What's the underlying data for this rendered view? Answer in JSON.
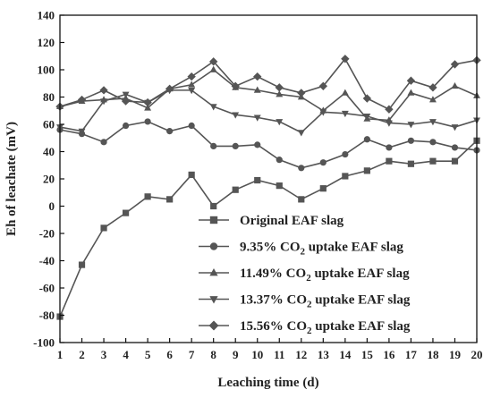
{
  "chart_data": {
    "type": "line",
    "xlabel": "Leaching time (d)",
    "ylabel": "Eh of leachate (mV)",
    "xlim": [
      1,
      20
    ],
    "ylim": [
      -100,
      140
    ],
    "x_ticks": [
      1,
      2,
      3,
      4,
      5,
      6,
      7,
      8,
      9,
      10,
      11,
      12,
      13,
      14,
      15,
      16,
      17,
      18,
      19,
      20
    ],
    "y_ticks": [
      -100,
      -80,
      -60,
      -40,
      -20,
      0,
      20,
      40,
      60,
      80,
      100,
      120,
      140
    ],
    "x": [
      1,
      2,
      3,
      4,
      5,
      6,
      7,
      8,
      9,
      10,
      11,
      12,
      13,
      14,
      15,
      16,
      17,
      18,
      19,
      20
    ],
    "legend_position": "lower-right",
    "series": [
      {
        "name": "Original EAF slag",
        "pre": "Original EAF slag",
        "sub": "",
        "post": "",
        "marker": "square",
        "values": [
          -81,
          -43,
          -16,
          -5,
          7,
          5,
          23,
          0,
          12,
          19,
          15,
          5,
          13,
          22,
          26,
          33,
          31,
          33,
          33,
          48
        ]
      },
      {
        "name": "9.35% CO2 uptake EAF slag",
        "pre": "9.35% CO",
        "sub": "2",
        "post": " uptake EAF slag",
        "marker": "circle",
        "values": [
          56,
          53,
          47,
          59,
          62,
          55,
          59,
          44,
          44,
          45,
          34,
          28,
          32,
          38,
          49,
          43,
          48,
          47,
          43,
          41
        ]
      },
      {
        "name": "11.49% CO2 uptake EAF slag",
        "pre": "11.49% CO",
        "sub": "2",
        "post": " uptake EAF slag",
        "marker": "triangle-up",
        "values": [
          73,
          77,
          78,
          79,
          72,
          86,
          89,
          100,
          87,
          85,
          82,
          80,
          70,
          83,
          64,
          63,
          83,
          78,
          88,
          81
        ]
      },
      {
        "name": "13.37% CO2 uptake EAF slag",
        "pre": "13.37% CO",
        "sub": "2",
        "post": " uptake EAF slag",
        "marker": "triangle-down",
        "values": [
          58,
          55,
          77,
          82,
          76,
          85,
          85,
          73,
          67,
          65,
          62,
          54,
          69,
          68,
          66,
          61,
          60,
          62,
          58,
          63
        ]
      },
      {
        "name": "15.56% CO2 uptake EAF slag",
        "pre": "15.56% CO",
        "sub": "2",
        "post": " uptake EAF slag",
        "marker": "diamond",
        "values": [
          73,
          78,
          85,
          77,
          76,
          86,
          95,
          106,
          88,
          95,
          87,
          83,
          88,
          108,
          79,
          71,
          92,
          87,
          104,
          107
        ]
      }
    ],
    "colors": {
      "line": "#555555",
      "axis": "#111111"
    }
  }
}
